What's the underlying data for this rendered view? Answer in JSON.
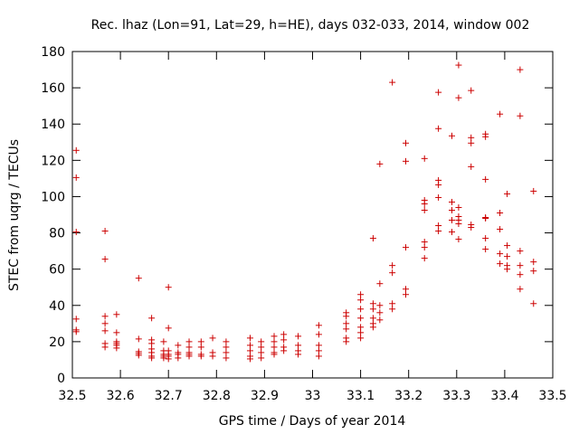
{
  "chart_data": {
    "type": "scatter",
    "title": "Rec. lhaz (Lon=91, Lat=29, h=HE), days 032-033, 2014, window 002",
    "xlabel": "GPS time / Days of year 2014",
    "ylabel": "STEC from uqrg / TECUs",
    "xlim": [
      32.5,
      33.5
    ],
    "ylim": [
      0,
      180
    ],
    "xticks": [
      32.5,
      32.6,
      32.7,
      32.8,
      32.9,
      33,
      33.1,
      33.2,
      33.3,
      33.4,
      33.5
    ],
    "xtick_labels": [
      "32.5",
      "32.6",
      "32.7",
      "32.8",
      "32.9",
      "33",
      "33.1",
      "33.2",
      "33.3",
      "33.4",
      "33.5"
    ],
    "yticks": [
      0,
      20,
      40,
      60,
      80,
      100,
      120,
      140,
      160,
      180
    ],
    "ytick_labels": [
      "0",
      "20",
      "40",
      "60",
      "80",
      "100",
      "120",
      "140",
      "160",
      "180"
    ],
    "grid": false,
    "marker": "+",
    "color": "#cc0000",
    "series": [
      {
        "name": "STEC",
        "points": [
          [
            32.508,
            125.5
          ],
          [
            32.508,
            110.5
          ],
          [
            32.508,
            80.5
          ],
          [
            32.508,
            32.5
          ],
          [
            32.508,
            26.5
          ],
          [
            32.508,
            25.5
          ],
          [
            32.568,
            81
          ],
          [
            32.568,
            65.5
          ],
          [
            32.568,
            34
          ],
          [
            32.568,
            30
          ],
          [
            32.568,
            26
          ],
          [
            32.568,
            19
          ],
          [
            32.568,
            17
          ],
          [
            32.592,
            35
          ],
          [
            32.592,
            25
          ],
          [
            32.592,
            20
          ],
          [
            32.592,
            19
          ],
          [
            32.592,
            18
          ],
          [
            32.592,
            16.5
          ],
          [
            32.638,
            55
          ],
          [
            32.638,
            21.5
          ],
          [
            32.638,
            14.5
          ],
          [
            32.638,
            13.5
          ],
          [
            32.638,
            12.5
          ],
          [
            32.665,
            33
          ],
          [
            32.665,
            21
          ],
          [
            32.665,
            19
          ],
          [
            32.665,
            16
          ],
          [
            32.665,
            14
          ],
          [
            32.665,
            12
          ],
          [
            32.665,
            11
          ],
          [
            32.69,
            20
          ],
          [
            32.69,
            15
          ],
          [
            32.69,
            13
          ],
          [
            32.69,
            12
          ],
          [
            32.69,
            11
          ],
          [
            32.7,
            50
          ],
          [
            32.7,
            27.5
          ],
          [
            32.7,
            15
          ],
          [
            32.7,
            13
          ],
          [
            32.7,
            12
          ],
          [
            32.7,
            10.5
          ],
          [
            32.72,
            18
          ],
          [
            32.72,
            14
          ],
          [
            32.72,
            13
          ],
          [
            32.72,
            11
          ],
          [
            32.743,
            20
          ],
          [
            32.743,
            17
          ],
          [
            32.743,
            14
          ],
          [
            32.743,
            13
          ],
          [
            32.743,
            12
          ],
          [
            32.768,
            20
          ],
          [
            32.768,
            17
          ],
          [
            32.768,
            13
          ],
          [
            32.768,
            12
          ],
          [
            32.792,
            22
          ],
          [
            32.792,
            14
          ],
          [
            32.792,
            12
          ],
          [
            32.82,
            20
          ],
          [
            32.82,
            17
          ],
          [
            32.82,
            14
          ],
          [
            32.82,
            11
          ],
          [
            32.87,
            22
          ],
          [
            32.87,
            18
          ],
          [
            32.87,
            15
          ],
          [
            32.87,
            12
          ],
          [
            32.87,
            10.5
          ],
          [
            32.893,
            20
          ],
          [
            32.893,
            17
          ],
          [
            32.893,
            14
          ],
          [
            32.893,
            11
          ],
          [
            32.92,
            23
          ],
          [
            32.92,
            20
          ],
          [
            32.92,
            17
          ],
          [
            32.92,
            14
          ],
          [
            32.92,
            13
          ],
          [
            32.94,
            24
          ],
          [
            32.94,
            21
          ],
          [
            32.94,
            17
          ],
          [
            32.94,
            15
          ],
          [
            32.97,
            23
          ],
          [
            32.97,
            18
          ],
          [
            32.97,
            15
          ],
          [
            32.97,
            13
          ],
          [
            33.013,
            29
          ],
          [
            33.013,
            24
          ],
          [
            33.013,
            18
          ],
          [
            33.013,
            15
          ],
          [
            33.013,
            12
          ],
          [
            33.07,
            36
          ],
          [
            33.07,
            34
          ],
          [
            33.07,
            30
          ],
          [
            33.07,
            27
          ],
          [
            33.07,
            22
          ],
          [
            33.07,
            20
          ],
          [
            33.1,
            46
          ],
          [
            33.1,
            43
          ],
          [
            33.1,
            38
          ],
          [
            33.1,
            33
          ],
          [
            33.1,
            28
          ],
          [
            33.1,
            25
          ],
          [
            33.1,
            22
          ],
          [
            33.126,
            77
          ],
          [
            33.126,
            41
          ],
          [
            33.126,
            38
          ],
          [
            33.126,
            33
          ],
          [
            33.126,
            30
          ],
          [
            33.126,
            28
          ],
          [
            33.14,
            118
          ],
          [
            33.14,
            52
          ],
          [
            33.14,
            40
          ],
          [
            33.14,
            36
          ],
          [
            33.14,
            32
          ],
          [
            33.166,
            163
          ],
          [
            33.166,
            62
          ],
          [
            33.166,
            58
          ],
          [
            33.166,
            41
          ],
          [
            33.166,
            38
          ],
          [
            33.194,
            129.5
          ],
          [
            33.194,
            119.5
          ],
          [
            33.194,
            72
          ],
          [
            33.194,
            49
          ],
          [
            33.194,
            46
          ],
          [
            33.233,
            121
          ],
          [
            33.233,
            98
          ],
          [
            33.233,
            96
          ],
          [
            33.233,
            92.5
          ],
          [
            33.233,
            75
          ],
          [
            33.233,
            72
          ],
          [
            33.233,
            66
          ],
          [
            33.262,
            157.5
          ],
          [
            33.262,
            137.5
          ],
          [
            33.262,
            109
          ],
          [
            33.262,
            106.5
          ],
          [
            33.262,
            99.5
          ],
          [
            33.262,
            84
          ],
          [
            33.262,
            81
          ],
          [
            33.29,
            133.5
          ],
          [
            33.29,
            97
          ],
          [
            33.29,
            92.5
          ],
          [
            33.29,
            87
          ],
          [
            33.29,
            80.5
          ],
          [
            33.304,
            172.5
          ],
          [
            33.304,
            154.5
          ],
          [
            33.304,
            94
          ],
          [
            33.304,
            89
          ],
          [
            33.304,
            87
          ],
          [
            33.304,
            85
          ],
          [
            33.304,
            76.5
          ],
          [
            33.33,
            158.5
          ],
          [
            33.33,
            132.5
          ],
          [
            33.33,
            129.5
          ],
          [
            33.33,
            116.5
          ],
          [
            33.33,
            84.5
          ],
          [
            33.33,
            83
          ],
          [
            33.36,
            134.5
          ],
          [
            33.36,
            133
          ],
          [
            33.36,
            109.5
          ],
          [
            33.36,
            88.5
          ],
          [
            33.36,
            88
          ],
          [
            33.36,
            77
          ],
          [
            33.36,
            71
          ],
          [
            33.39,
            145.5
          ],
          [
            33.39,
            91
          ],
          [
            33.39,
            82
          ],
          [
            33.39,
            68.5
          ],
          [
            33.39,
            63
          ],
          [
            33.405,
            101.5
          ],
          [
            33.405,
            73
          ],
          [
            33.405,
            67
          ],
          [
            33.405,
            62
          ],
          [
            33.405,
            60
          ],
          [
            33.432,
            170
          ],
          [
            33.432,
            144.5
          ],
          [
            33.432,
            70
          ],
          [
            33.432,
            62
          ],
          [
            33.432,
            57
          ],
          [
            33.432,
            49
          ],
          [
            33.46,
            103
          ],
          [
            33.46,
            64
          ],
          [
            33.46,
            59
          ],
          [
            33.46,
            41
          ]
        ]
      }
    ]
  }
}
